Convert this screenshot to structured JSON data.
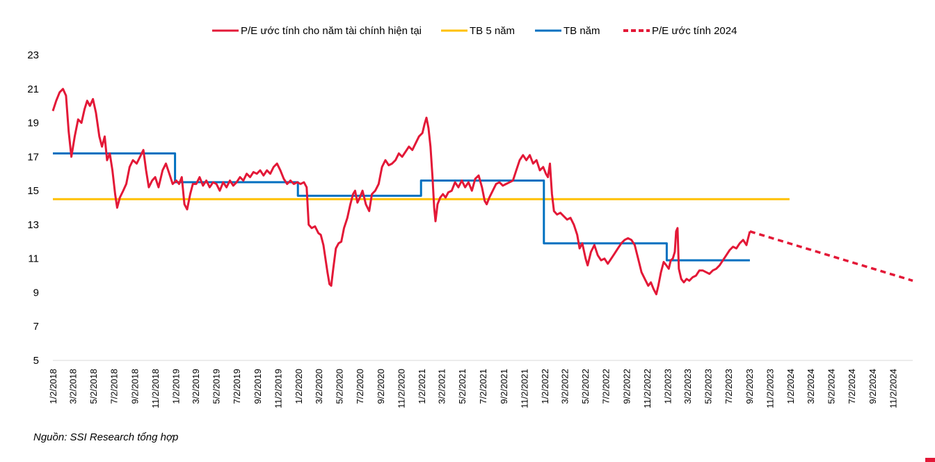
{
  "chart_data": {
    "type": "line",
    "title": "",
    "xlabel": "",
    "ylabel": "",
    "ylim": [
      5,
      23
    ],
    "y_ticks": [
      5,
      7,
      9,
      11,
      13,
      15,
      17,
      19,
      21,
      23
    ],
    "x_range": [
      "2018-01-02",
      "2024-12-31"
    ],
    "x_tick_labels": [
      "1/2/2018",
      "3/2/2018",
      "5/2/2018",
      "7/2/2018",
      "9/2/2018",
      "11/2/2018",
      "1/2/2019",
      "3/2/2019",
      "5/2/2019",
      "7/2/2019",
      "9/2/2019",
      "11/2/2019",
      "1/2/2020",
      "3/2/2020",
      "5/2/2020",
      "7/2/2020",
      "9/2/2020",
      "11/2/2020",
      "1/2/2021",
      "3/2/2021",
      "5/2/2021",
      "7/2/2021",
      "9/2/2021",
      "11/2/2021",
      "1/2/2022",
      "3/2/2022",
      "5/2/2022",
      "7/2/2022",
      "9/2/2022",
      "11/2/2022",
      "1/2/2023",
      "3/2/2023",
      "5/2/2023",
      "7/2/2023",
      "9/2/2023",
      "11/2/2023",
      "1/2/2024",
      "3/2/2024",
      "5/2/2024",
      "7/2/2024",
      "9/2/2024",
      "11/2/2024"
    ],
    "grid": false,
    "legend_position": "top",
    "series": [
      {
        "name": "P/E ước tính cho năm tài chính hiện tại",
        "color": "#e31837",
        "style": "solid",
        "points": [
          [
            "2018-01-02",
            19.7
          ],
          [
            "2018-01-12",
            20.3
          ],
          [
            "2018-01-22",
            20.8
          ],
          [
            "2018-02-01",
            21.0
          ],
          [
            "2018-02-10",
            20.6
          ],
          [
            "2018-02-18",
            18.5
          ],
          [
            "2018-02-26",
            17.0
          ],
          [
            "2018-03-08",
            18.2
          ],
          [
            "2018-03-18",
            19.2
          ],
          [
            "2018-03-28",
            19.0
          ],
          [
            "2018-04-06",
            19.8
          ],
          [
            "2018-04-14",
            20.3
          ],
          [
            "2018-04-22",
            20.0
          ],
          [
            "2018-05-01",
            20.4
          ],
          [
            "2018-05-10",
            19.6
          ],
          [
            "2018-05-20",
            18.2
          ],
          [
            "2018-05-28",
            17.6
          ],
          [
            "2018-06-05",
            18.2
          ],
          [
            "2018-06-12",
            16.8
          ],
          [
            "2018-06-20",
            17.2
          ],
          [
            "2018-06-28",
            16.2
          ],
          [
            "2018-07-06",
            14.8
          ],
          [
            "2018-07-12",
            14.0
          ],
          [
            "2018-07-20",
            14.6
          ],
          [
            "2018-07-30",
            15.0
          ],
          [
            "2018-08-08",
            15.4
          ],
          [
            "2018-08-18",
            16.4
          ],
          [
            "2018-08-28",
            16.8
          ],
          [
            "2018-09-08",
            16.6
          ],
          [
            "2018-09-18",
            17.0
          ],
          [
            "2018-09-28",
            17.4
          ],
          [
            "2018-10-06",
            16.2
          ],
          [
            "2018-10-14",
            15.2
          ],
          [
            "2018-10-24",
            15.6
          ],
          [
            "2018-11-02",
            15.8
          ],
          [
            "2018-11-12",
            15.2
          ],
          [
            "2018-11-24",
            16.2
          ],
          [
            "2018-12-04",
            16.6
          ],
          [
            "2018-12-14",
            16.0
          ],
          [
            "2018-12-24",
            15.4
          ],
          [
            "2019-01-04",
            15.6
          ],
          [
            "2019-01-12",
            15.4
          ],
          [
            "2019-01-20",
            15.8
          ],
          [
            "2019-01-28",
            14.2
          ],
          [
            "2019-02-05",
            13.9
          ],
          [
            "2019-02-14",
            14.8
          ],
          [
            "2019-02-22",
            15.4
          ],
          [
            "2019-03-04",
            15.4
          ],
          [
            "2019-03-14",
            15.8
          ],
          [
            "2019-03-24",
            15.3
          ],
          [
            "2019-04-03",
            15.6
          ],
          [
            "2019-04-13",
            15.2
          ],
          [
            "2019-04-23",
            15.5
          ],
          [
            "2019-05-03",
            15.4
          ],
          [
            "2019-05-13",
            15.0
          ],
          [
            "2019-05-23",
            15.5
          ],
          [
            "2019-06-02",
            15.2
          ],
          [
            "2019-06-12",
            15.6
          ],
          [
            "2019-06-22",
            15.3
          ],
          [
            "2019-07-02",
            15.5
          ],
          [
            "2019-07-12",
            15.8
          ],
          [
            "2019-07-22",
            15.6
          ],
          [
            "2019-08-01",
            16.0
          ],
          [
            "2019-08-11",
            15.8
          ],
          [
            "2019-08-21",
            16.1
          ],
          [
            "2019-08-31",
            16.0
          ],
          [
            "2019-09-10",
            16.2
          ],
          [
            "2019-09-20",
            15.9
          ],
          [
            "2019-09-30",
            16.2
          ],
          [
            "2019-10-10",
            16.0
          ],
          [
            "2019-10-20",
            16.4
          ],
          [
            "2019-10-30",
            16.6
          ],
          [
            "2019-11-09",
            16.2
          ],
          [
            "2019-11-19",
            15.7
          ],
          [
            "2019-11-29",
            15.4
          ],
          [
            "2019-12-09",
            15.6
          ],
          [
            "2019-12-19",
            15.4
          ],
          [
            "2019-12-29",
            15.5
          ],
          [
            "2020-01-08",
            15.4
          ],
          [
            "2020-01-18",
            15.5
          ],
          [
            "2020-01-26",
            15.2
          ],
          [
            "2020-02-01",
            13.0
          ],
          [
            "2020-02-10",
            12.8
          ],
          [
            "2020-02-20",
            12.9
          ],
          [
            "2020-03-01",
            12.5
          ],
          [
            "2020-03-08",
            12.4
          ],
          [
            "2020-03-16",
            11.8
          ],
          [
            "2020-03-22",
            11.0
          ],
          [
            "2020-03-28",
            10.2
          ],
          [
            "2020-04-03",
            9.5
          ],
          [
            "2020-04-08",
            9.4
          ],
          [
            "2020-04-14",
            10.4
          ],
          [
            "2020-04-22",
            11.6
          ],
          [
            "2020-04-30",
            11.9
          ],
          [
            "2020-05-08",
            12.0
          ],
          [
            "2020-05-16",
            12.8
          ],
          [
            "2020-05-26",
            13.4
          ],
          [
            "2020-06-04",
            14.2
          ],
          [
            "2020-06-12",
            14.8
          ],
          [
            "2020-06-18",
            15.0
          ],
          [
            "2020-06-25",
            14.3
          ],
          [
            "2020-07-02",
            14.6
          ],
          [
            "2020-07-10",
            15.0
          ],
          [
            "2020-07-20",
            14.2
          ],
          [
            "2020-07-30",
            13.8
          ],
          [
            "2020-08-07",
            14.8
          ],
          [
            "2020-08-17",
            15.0
          ],
          [
            "2020-08-27",
            15.4
          ],
          [
            "2020-09-06",
            16.4
          ],
          [
            "2020-09-16",
            16.8
          ],
          [
            "2020-09-26",
            16.5
          ],
          [
            "2020-10-06",
            16.6
          ],
          [
            "2020-10-16",
            16.8
          ],
          [
            "2020-10-26",
            17.2
          ],
          [
            "2020-11-05",
            17.0
          ],
          [
            "2020-11-15",
            17.3
          ],
          [
            "2020-11-25",
            17.6
          ],
          [
            "2020-12-05",
            17.4
          ],
          [
            "2020-12-15",
            17.8
          ],
          [
            "2020-12-25",
            18.2
          ],
          [
            "2021-01-04",
            18.4
          ],
          [
            "2021-01-10",
            18.9
          ],
          [
            "2021-01-16",
            19.3
          ],
          [
            "2021-01-22",
            18.7
          ],
          [
            "2021-01-28",
            17.6
          ],
          [
            "2021-02-03",
            15.8
          ],
          [
            "2021-02-08",
            14.0
          ],
          [
            "2021-02-12",
            13.2
          ],
          [
            "2021-02-18",
            14.2
          ],
          [
            "2021-02-26",
            14.6
          ],
          [
            "2021-03-06",
            14.8
          ],
          [
            "2021-03-14",
            14.6
          ],
          [
            "2021-03-22",
            14.9
          ],
          [
            "2021-04-01",
            15.0
          ],
          [
            "2021-04-11",
            15.5
          ],
          [
            "2021-04-21",
            15.2
          ],
          [
            "2021-05-01",
            15.6
          ],
          [
            "2021-05-11",
            15.2
          ],
          [
            "2021-05-21",
            15.5
          ],
          [
            "2021-05-31",
            15.0
          ],
          [
            "2021-06-10",
            15.7
          ],
          [
            "2021-06-20",
            15.9
          ],
          [
            "2021-06-30",
            15.2
          ],
          [
            "2021-07-08",
            14.4
          ],
          [
            "2021-07-14",
            14.2
          ],
          [
            "2021-07-22",
            14.6
          ],
          [
            "2021-08-01",
            15.0
          ],
          [
            "2021-08-11",
            15.4
          ],
          [
            "2021-08-21",
            15.5
          ],
          [
            "2021-08-31",
            15.3
          ],
          [
            "2021-09-10",
            15.4
          ],
          [
            "2021-09-20",
            15.5
          ],
          [
            "2021-09-30",
            15.6
          ],
          [
            "2021-10-10",
            16.2
          ],
          [
            "2021-10-20",
            16.8
          ],
          [
            "2021-10-30",
            17.1
          ],
          [
            "2021-11-09",
            16.8
          ],
          [
            "2021-11-19",
            17.1
          ],
          [
            "2021-11-29",
            16.6
          ],
          [
            "2021-12-09",
            16.8
          ],
          [
            "2021-12-19",
            16.2
          ],
          [
            "2021-12-29",
            16.4
          ],
          [
            "2022-01-06",
            16.0
          ],
          [
            "2022-01-12",
            15.8
          ],
          [
            "2022-01-18",
            16.6
          ],
          [
            "2022-01-24",
            14.8
          ],
          [
            "2022-01-30",
            13.8
          ],
          [
            "2022-02-08",
            13.6
          ],
          [
            "2022-02-18",
            13.7
          ],
          [
            "2022-02-28",
            13.5
          ],
          [
            "2022-03-10",
            13.3
          ],
          [
            "2022-03-20",
            13.4
          ],
          [
            "2022-03-30",
            13.0
          ],
          [
            "2022-04-09",
            12.4
          ],
          [
            "2022-04-16",
            11.6
          ],
          [
            "2022-04-24",
            11.9
          ],
          [
            "2022-05-04",
            11.0
          ],
          [
            "2022-05-10",
            10.6
          ],
          [
            "2022-05-20",
            11.4
          ],
          [
            "2022-05-30",
            11.8
          ],
          [
            "2022-06-09",
            11.2
          ],
          [
            "2022-06-19",
            10.9
          ],
          [
            "2022-06-29",
            11.0
          ],
          [
            "2022-07-09",
            10.7
          ],
          [
            "2022-07-19",
            11.0
          ],
          [
            "2022-07-29",
            11.3
          ],
          [
            "2022-08-08",
            11.6
          ],
          [
            "2022-08-18",
            11.9
          ],
          [
            "2022-08-28",
            12.1
          ],
          [
            "2022-09-07",
            12.2
          ],
          [
            "2022-09-17",
            12.1
          ],
          [
            "2022-09-27",
            11.8
          ],
          [
            "2022-10-07",
            11.0
          ],
          [
            "2022-10-17",
            10.2
          ],
          [
            "2022-10-27",
            9.8
          ],
          [
            "2022-11-06",
            9.4
          ],
          [
            "2022-11-14",
            9.6
          ],
          [
            "2022-11-22",
            9.2
          ],
          [
            "2022-11-30",
            8.9
          ],
          [
            "2022-12-06",
            9.4
          ],
          [
            "2022-12-14",
            10.2
          ],
          [
            "2022-12-22",
            10.8
          ],
          [
            "2022-12-30",
            10.6
          ],
          [
            "2023-01-06",
            10.4
          ],
          [
            "2023-01-12",
            10.9
          ],
          [
            "2023-01-18",
            11.0
          ],
          [
            "2023-01-24",
            11.4
          ],
          [
            "2023-01-28",
            12.6
          ],
          [
            "2023-02-01",
            12.8
          ],
          [
            "2023-02-05",
            10.4
          ],
          [
            "2023-02-12",
            9.8
          ],
          [
            "2023-02-20",
            9.6
          ],
          [
            "2023-02-28",
            9.8
          ],
          [
            "2023-03-08",
            9.7
          ],
          [
            "2023-03-18",
            9.9
          ],
          [
            "2023-03-28",
            10.0
          ],
          [
            "2023-04-07",
            10.3
          ],
          [
            "2023-04-17",
            10.3
          ],
          [
            "2023-04-27",
            10.2
          ],
          [
            "2023-05-07",
            10.1
          ],
          [
            "2023-05-17",
            10.3
          ],
          [
            "2023-05-27",
            10.4
          ],
          [
            "2023-06-06",
            10.6
          ],
          [
            "2023-06-16",
            10.9
          ],
          [
            "2023-06-26",
            11.2
          ],
          [
            "2023-07-06",
            11.5
          ],
          [
            "2023-07-16",
            11.7
          ],
          [
            "2023-07-26",
            11.6
          ],
          [
            "2023-08-05",
            11.9
          ],
          [
            "2023-08-15",
            12.1
          ],
          [
            "2023-08-25",
            11.8
          ],
          [
            "2023-08-30",
            12.2
          ],
          [
            "2023-09-04",
            12.6
          ]
        ]
      },
      {
        "name": "TB 5 năm",
        "color": "#ffc000",
        "style": "solid",
        "points": [
          [
            "2018-01-02",
            14.5
          ],
          [
            "2023-12-31",
            14.5
          ]
        ]
      },
      {
        "name": "TB năm",
        "color": "#0070c0",
        "style": "step",
        "points": [
          [
            "2018-01-02",
            17.2
          ],
          [
            "2018-12-31",
            17.2
          ],
          [
            "2018-12-31",
            15.5
          ],
          [
            "2019-12-31",
            15.5
          ],
          [
            "2019-12-31",
            14.7
          ],
          [
            "2020-12-31",
            14.7
          ],
          [
            "2020-12-31",
            15.6
          ],
          [
            "2021-12-31",
            15.6
          ],
          [
            "2021-12-31",
            11.9
          ],
          [
            "2022-12-31",
            11.9
          ],
          [
            "2022-12-31",
            10.9
          ],
          [
            "2023-09-04",
            10.9
          ]
        ]
      },
      {
        "name": "P/E ước tính 2024",
        "color": "#e31837",
        "style": "dashed",
        "points": [
          [
            "2023-09-04",
            12.6
          ],
          [
            "2024-12-31",
            9.7
          ]
        ]
      }
    ]
  },
  "footer": {
    "source": "Nguồn: SSI Research tổng hợp"
  }
}
